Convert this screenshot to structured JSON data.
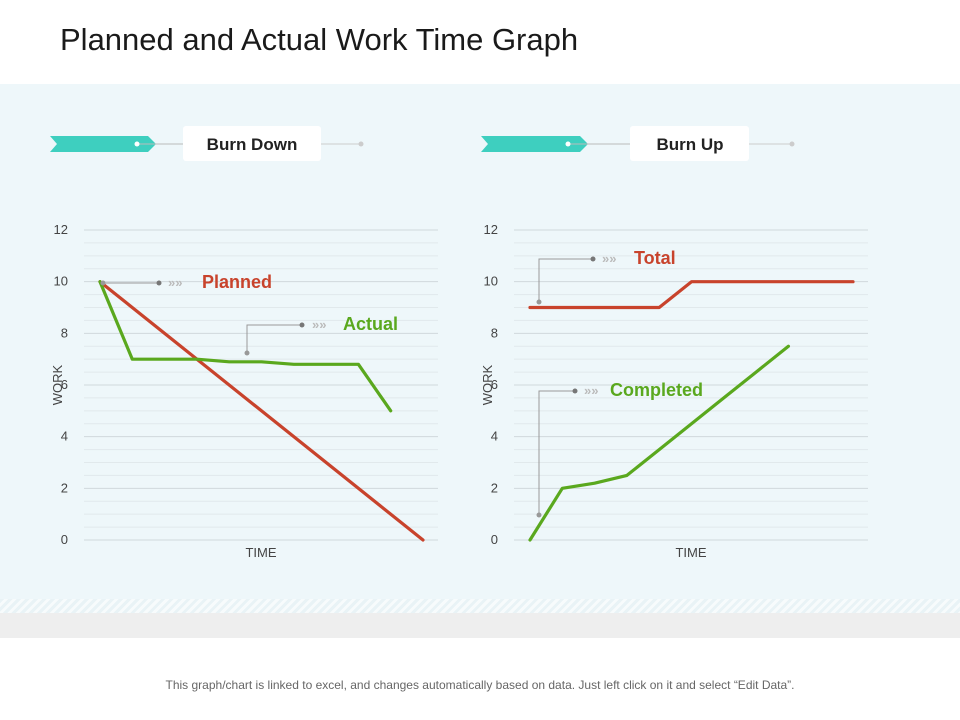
{
  "page": {
    "title": "Planned and Actual Work Time Graph",
    "footer": "This graph/chart is linked to excel, and changes automatically based on data. Just left click on it and select “Edit Data”."
  },
  "colors": {
    "red_series": "#c8432c",
    "green_series": "#5aa81e",
    "teal_accent": "#3ecfbf",
    "panel_background": "#eef7fa"
  },
  "chart_data": [
    {
      "type": "line",
      "title": "Burn Down",
      "xlabel": "TIME",
      "ylabel": "WORK",
      "yticks": [
        "0",
        "2",
        "4",
        "6",
        "8",
        "10",
        "12"
      ],
      "ylim": [
        0,
        12
      ],
      "grid": true,
      "series": [
        {
          "name": "Planned",
          "color": "#c8432c",
          "x": [
            0,
            10
          ],
          "values": [
            10,
            0
          ]
        },
        {
          "name": "Actual",
          "color": "#5aa81e",
          "x": [
            0,
            1,
            2,
            3,
            4,
            5,
            6,
            7,
            8,
            9
          ],
          "values": [
            10,
            7,
            7,
            7,
            6.9,
            6.9,
            6.8,
            6.8,
            6.8,
            5
          ]
        }
      ]
    },
    {
      "type": "line",
      "title": "Burn Up",
      "xlabel": "TIME",
      "ylabel": "WORK",
      "yticks": [
        "0",
        "2",
        "4",
        "6",
        "8",
        "10",
        "12"
      ],
      "ylim": [
        0,
        12
      ],
      "grid": true,
      "series": [
        {
          "name": "Total",
          "color": "#c8432c",
          "x": [
            0,
            4,
            5,
            10
          ],
          "values": [
            9,
            9,
            10,
            10
          ]
        },
        {
          "name": "Completed",
          "color": "#5aa81e",
          "x": [
            0,
            1,
            2,
            3,
            4,
            5,
            6,
            7,
            8
          ],
          "values": [
            0,
            2,
            2.2,
            2.5,
            3.5,
            4.5,
            5.5,
            6.5,
            7.5
          ]
        }
      ]
    }
  ]
}
